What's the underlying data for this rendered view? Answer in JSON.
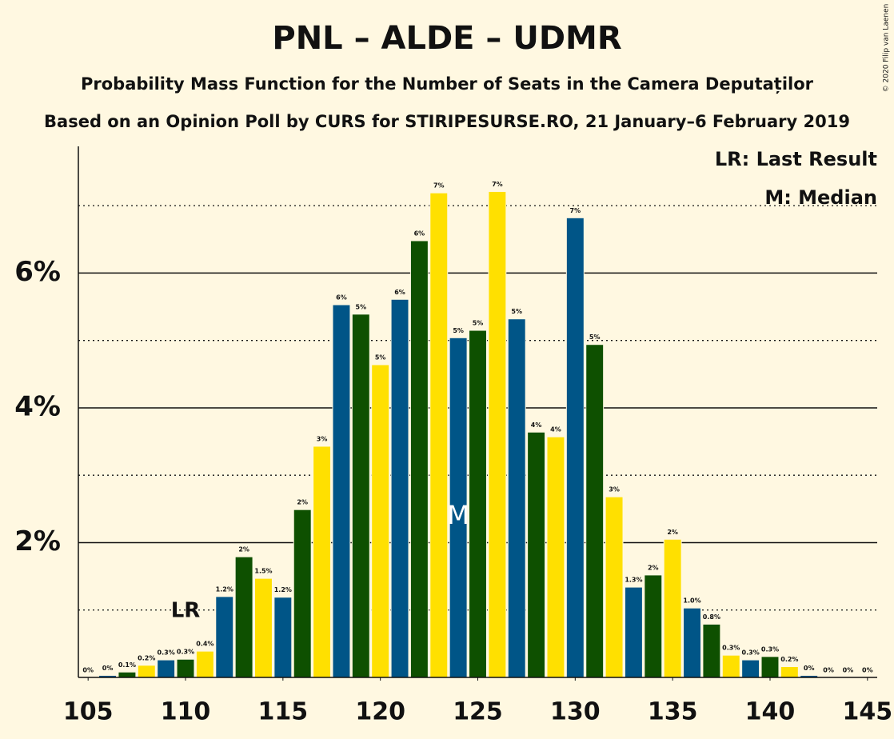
{
  "chart_data": {
    "type": "bar",
    "title": "PNL – ALDE – UDMR",
    "subtitle": "Probability Mass Function for the Number of Seats in the Camera Deputaților",
    "subtitle2": "Based on an Opinion Poll by CURS for STIRIPESURSE.RO, 21 January–6 February 2019",
    "copyright": "© 2020 Filip van Laenen",
    "legend": [
      "LR: Last Result",
      "M: Median"
    ],
    "x": [
      105,
      106,
      107,
      108,
      109,
      110,
      111,
      112,
      113,
      114,
      115,
      116,
      117,
      118,
      119,
      120,
      121,
      122,
      123,
      124,
      125,
      126,
      127,
      128,
      129,
      130,
      131,
      132,
      133,
      134,
      135,
      136,
      137,
      138,
      139,
      140,
      141,
      142,
      143,
      144,
      145
    ],
    "values": [
      0,
      0.03,
      0.08,
      0.18,
      0.26,
      0.27,
      0.39,
      1.2,
      1.79,
      1.47,
      1.19,
      2.49,
      3.43,
      5.53,
      5.39,
      4.64,
      5.61,
      6.48,
      7.19,
      5.04,
      5.15,
      7.21,
      5.32,
      3.64,
      3.57,
      6.82,
      4.94,
      2.68,
      1.34,
      1.52,
      2.05,
      1.03,
      0.79,
      0.33,
      0.26,
      0.31,
      0.16,
      0.03,
      0,
      0,
      0
    ],
    "value_labels": [
      "0%",
      "0%",
      "0.1%",
      "0.2%",
      "0.3%",
      "0.3%",
      "0.4%",
      "1.2%",
      "2%",
      "1.5%",
      "1.2%",
      "2%",
      "3%",
      "6%",
      "5%",
      "5%",
      "6%",
      "6%",
      "7%",
      "5%",
      "5%",
      "7%",
      "5%",
      "4%",
      "4%",
      "7%",
      "5%",
      "3%",
      "1.3%",
      "2%",
      "2%",
      "1.0%",
      "0.8%",
      "0.3%",
      "0.3%",
      "0.3%",
      "0.2%",
      "0%",
      "0%",
      "0%",
      "0%"
    ],
    "color_cycle": [
      "#ffe000",
      "#005587",
      "#0e5000"
    ],
    "xlim": [
      104.5,
      145.5
    ],
    "xticks": [
      105,
      110,
      115,
      120,
      125,
      130,
      135,
      140,
      145
    ],
    "ylim": [
      0,
      7.88
    ],
    "yticks": [
      {
        "value": 2,
        "label": "2%"
      },
      {
        "value": 4,
        "label": "4%"
      },
      {
        "value": 6,
        "label": "6%"
      }
    ],
    "dotted_grid": [
      1,
      3,
      5,
      7
    ],
    "annotations": [
      {
        "text": "LR",
        "x": 110
      },
      {
        "text": "M",
        "x": 124
      }
    ]
  }
}
